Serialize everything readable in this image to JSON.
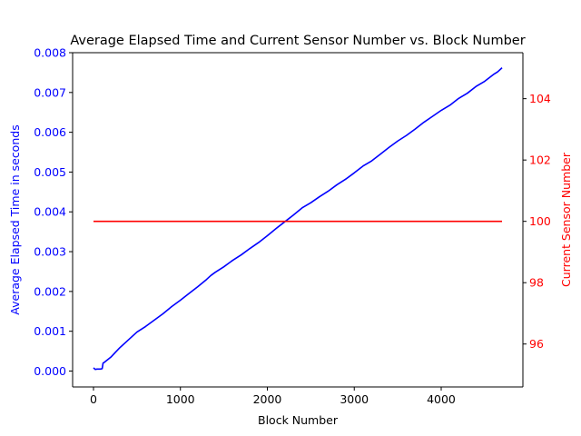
{
  "chart_data": {
    "type": "line",
    "title": "Average Elapsed Time and Current Sensor Number vs. Block Number",
    "xlabel": "Block Number",
    "xlim": [
      -240,
      4940
    ],
    "xticks": [
      0,
      1000,
      2000,
      3000,
      4000
    ],
    "xtick_labels": [
      "0",
      "1000",
      "2000",
      "3000",
      "4000"
    ],
    "grid": false,
    "axes": {
      "left": {
        "label": "Average Elapsed Time in seconds",
        "color": "#0000ff",
        "ylim": [
          -0.0004,
          0.008
        ],
        "ticks": [
          0,
          0.001,
          0.002,
          0.003,
          0.004,
          0.005,
          0.006,
          0.007,
          0.008
        ],
        "tick_labels": [
          "0.000",
          "0.001",
          "0.002",
          "0.003",
          "0.004",
          "0.005",
          "0.006",
          "0.007",
          "0.008"
        ]
      },
      "right": {
        "label": "Current Sensor Number",
        "color": "#ff0000",
        "ylim": [
          94.6,
          105.5
        ],
        "ticks": [
          96,
          98,
          100,
          102,
          104
        ],
        "tick_labels": [
          "96",
          "98",
          "100",
          "102",
          "104"
        ]
      }
    },
    "series": [
      {
        "axis": "left",
        "color": "#0000ff",
        "x": [
          0,
          20,
          40,
          60,
          80,
          100,
          110,
          120,
          200,
          300,
          400,
          500,
          600,
          700,
          800,
          900,
          1000,
          1100,
          1200,
          1300,
          1350,
          1400,
          1500,
          1600,
          1700,
          1800,
          1900,
          2000,
          2100,
          2200,
          2300,
          2400,
          2500,
          2600,
          2700,
          2800,
          2900,
          3000,
          3100,
          3200,
          3300,
          3400,
          3500,
          3600,
          3700,
          3800,
          3900,
          4000,
          4100,
          4200,
          4300,
          4400,
          4500,
          4600,
          4650,
          4700
        ],
        "values": [
          8e-05,
          4e-05,
          5e-05,
          5e-05,
          5e-05,
          6e-05,
          0.0002,
          0.00021,
          0.00035,
          0.00058,
          0.00078,
          0.00098,
          0.00112,
          0.00128,
          0.00144,
          0.00162,
          0.00178,
          0.00195,
          0.00212,
          0.0023,
          0.0024,
          0.00248,
          0.00262,
          0.00278,
          0.00292,
          0.00308,
          0.00323,
          0.0034,
          0.00358,
          0.00375,
          0.00392,
          0.0041,
          0.00423,
          0.00438,
          0.00452,
          0.00468,
          0.00482,
          0.00498,
          0.00515,
          0.00528,
          0.00545,
          0.00562,
          0.00578,
          0.00592,
          0.00608,
          0.00625,
          0.0064,
          0.00655,
          0.00668,
          0.00685,
          0.00698,
          0.00715,
          0.00728,
          0.00745,
          0.00752,
          0.00762
        ]
      },
      {
        "axis": "right",
        "color": "#ff0000",
        "x": [
          0,
          4700
        ],
        "values": [
          100,
          100
        ]
      }
    ]
  }
}
